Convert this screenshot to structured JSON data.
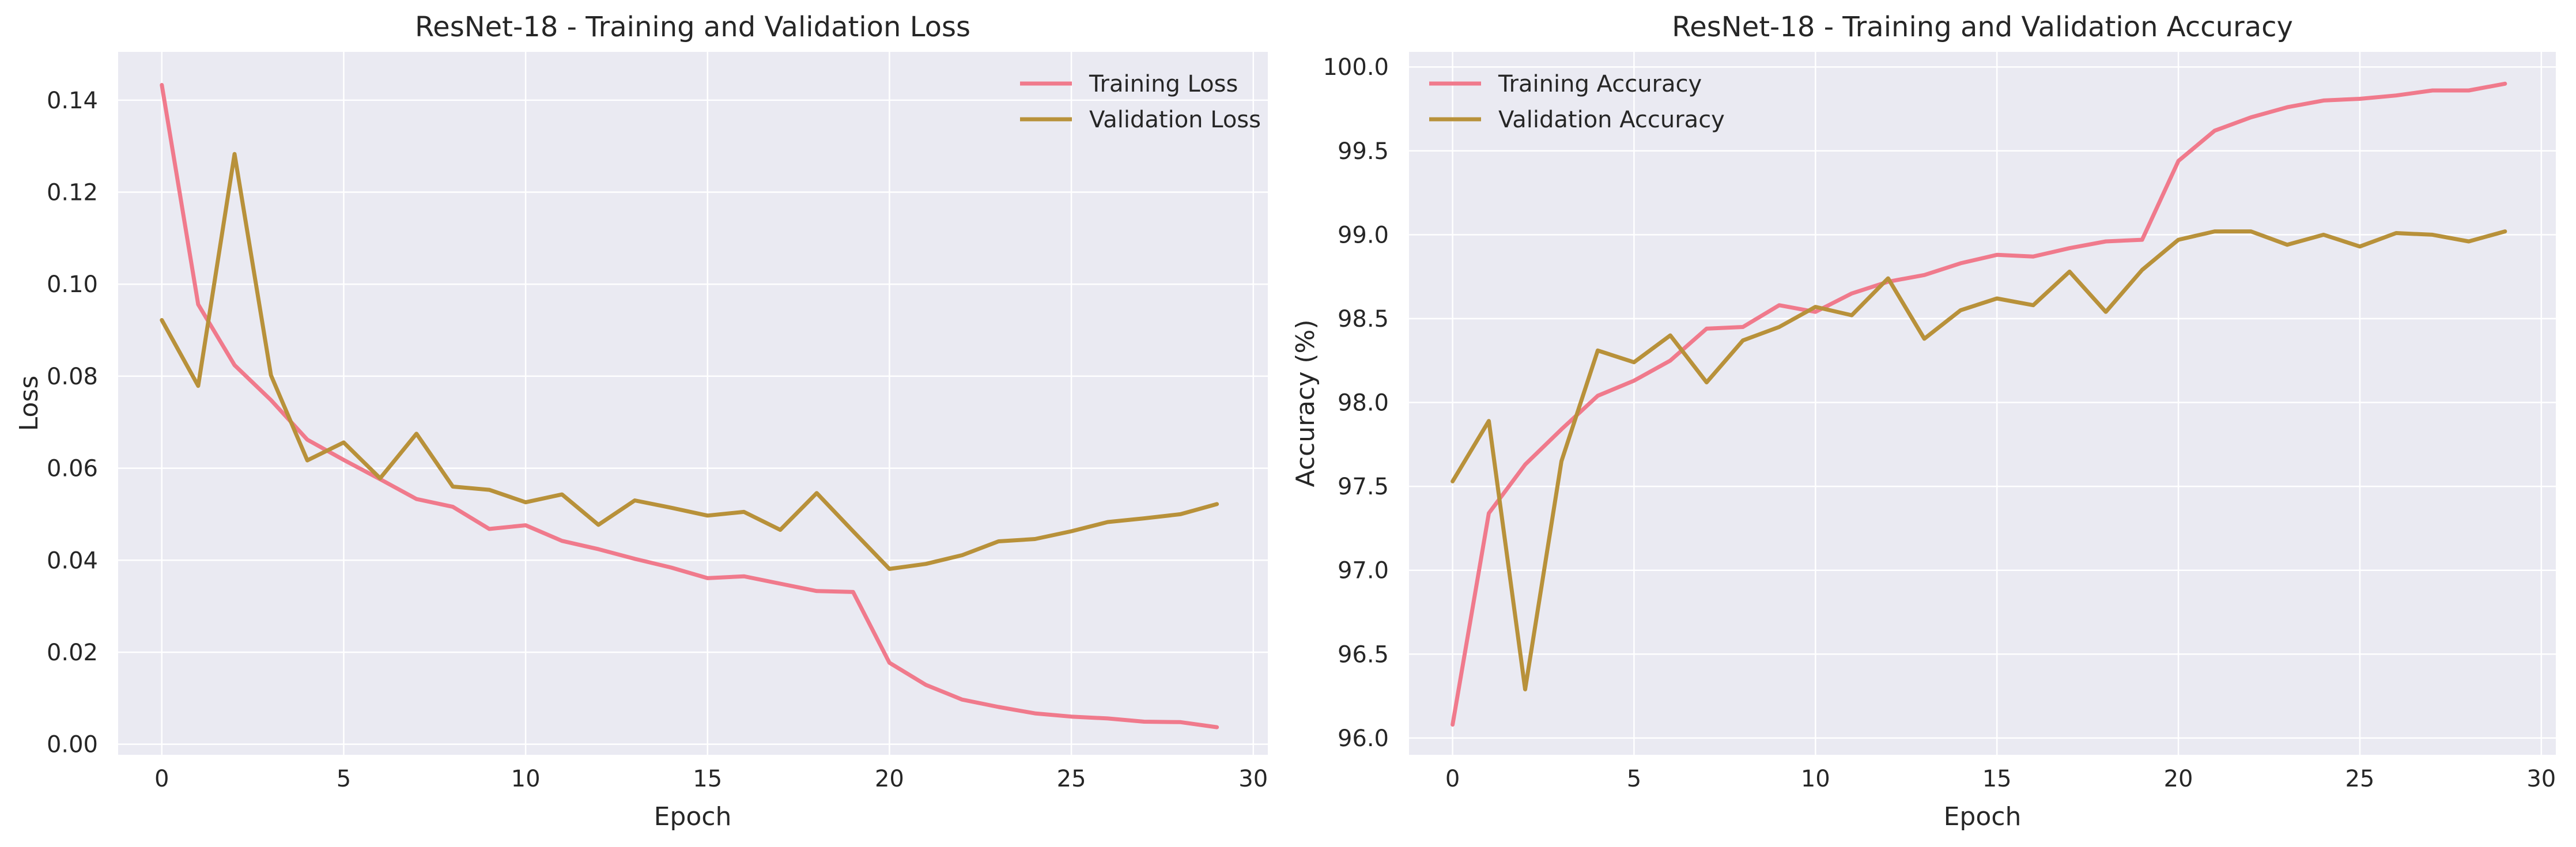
{
  "chart_data": [
    {
      "type": "line",
      "title": "ResNet-18 - Training and Validation Loss",
      "xlabel": "Epoch",
      "ylabel": "Loss",
      "xlim": [
        -1.2,
        30.4
      ],
      "ylim": [
        -0.0023,
        0.1505
      ],
      "xticks": [
        0,
        5,
        10,
        15,
        20,
        25,
        30
      ],
      "yticks": [
        0.0,
        0.02,
        0.04,
        0.06,
        0.08,
        0.1,
        0.12,
        0.14
      ],
      "ytick_labels": [
        "0.00",
        "0.02",
        "0.04",
        "0.06",
        "0.08",
        "0.10",
        "0.12",
        "0.14"
      ],
      "grid": true,
      "legend_position": "top-right",
      "x": [
        0,
        1,
        2,
        3,
        4,
        5,
        6,
        7,
        8,
        9,
        10,
        11,
        12,
        13,
        14,
        15,
        16,
        17,
        18,
        19,
        20,
        21,
        22,
        23,
        24,
        25,
        26,
        27,
        28,
        29
      ],
      "series": [
        {
          "name": "Training Loss",
          "color": "#f07a8c",
          "values": [
            0.1433,
            0.0956,
            0.0824,
            0.0748,
            0.0662,
            0.0618,
            0.0576,
            0.0533,
            0.0516,
            0.0468,
            0.0476,
            0.0442,
            0.0424,
            0.0403,
            0.0384,
            0.0361,
            0.0365,
            0.0349,
            0.0333,
            0.0331,
            0.0177,
            0.0129,
            0.0097,
            0.0081,
            0.0067,
            0.006,
            0.0056,
            0.0049,
            0.0048,
            0.0037
          ]
        },
        {
          "name": "Validation Loss",
          "color": "#b8913a",
          "values": [
            0.0922,
            0.0779,
            0.1283,
            0.0802,
            0.0617,
            0.0656,
            0.0578,
            0.0675,
            0.056,
            0.0553,
            0.0526,
            0.0543,
            0.0477,
            0.053,
            0.0514,
            0.0497,
            0.0505,
            0.0466,
            0.0546,
            0.0463,
            0.0381,
            0.0392,
            0.0411,
            0.0441,
            0.0446,
            0.0463,
            0.0483,
            0.0491,
            0.05,
            0.0522
          ]
        }
      ]
    },
    {
      "type": "line",
      "title": "ResNet-18 - Training and Validation Accuracy",
      "xlabel": "Epoch",
      "ylabel": "Accuracy (%)",
      "xlim": [
        -1.2,
        30.4
      ],
      "ylim": [
        95.9,
        100.09
      ],
      "xticks": [
        0,
        5,
        10,
        15,
        20,
        25,
        30
      ],
      "yticks": [
        96.0,
        96.5,
        97.0,
        97.5,
        98.0,
        98.5,
        99.0,
        99.5,
        100.0
      ],
      "ytick_labels": [
        "96.0",
        "96.5",
        "97.0",
        "97.5",
        "98.0",
        "98.5",
        "99.0",
        "99.5",
        "100.0"
      ],
      "grid": true,
      "legend_position": "top-left",
      "x": [
        0,
        1,
        2,
        3,
        4,
        5,
        6,
        7,
        8,
        9,
        10,
        11,
        12,
        13,
        14,
        15,
        16,
        17,
        18,
        19,
        20,
        21,
        22,
        23,
        24,
        25,
        26,
        27,
        28,
        29
      ],
      "series": [
        {
          "name": "Training Accuracy",
          "color": "#f07a8c",
          "values": [
            96.08,
            97.34,
            97.63,
            97.84,
            98.04,
            98.13,
            98.25,
            98.44,
            98.45,
            98.58,
            98.54,
            98.65,
            98.72,
            98.76,
            98.83,
            98.88,
            98.87,
            98.92,
            98.96,
            98.97,
            99.44,
            99.62,
            99.7,
            99.76,
            99.8,
            99.81,
            99.83,
            99.86,
            99.86,
            99.9
          ]
        },
        {
          "name": "Validation Accuracy",
          "color": "#b8913a",
          "values": [
            97.53,
            97.89,
            96.29,
            97.65,
            98.31,
            98.24,
            98.4,
            98.12,
            98.37,
            98.45,
            98.57,
            98.52,
            98.74,
            98.38,
            98.55,
            98.62,
            98.58,
            98.78,
            98.54,
            98.79,
            98.97,
            99.02,
            99.02,
            98.94,
            99.0,
            98.93,
            99.01,
            99.0,
            98.96,
            99.02
          ]
        }
      ]
    }
  ]
}
